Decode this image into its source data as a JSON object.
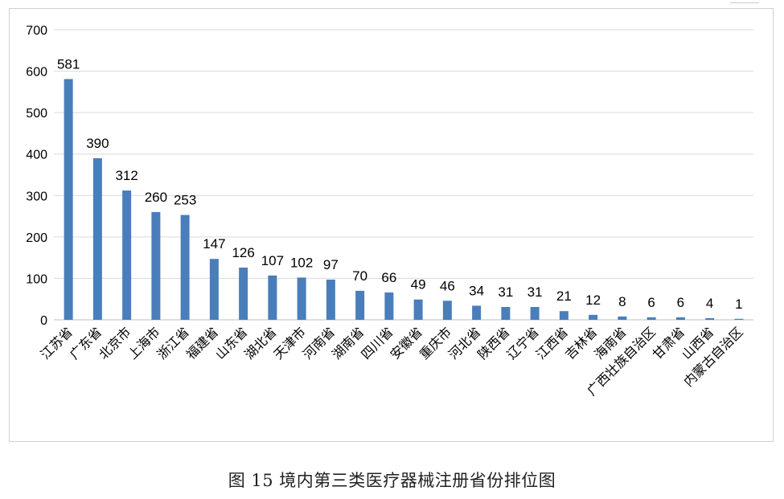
{
  "caption": "图 15 境内第三类医疗器械注册省份排位图",
  "colors": {
    "bar": "#4a7ebb",
    "grid": "#d9d9d9",
    "axis": "#bfbfbf",
    "text": "#000000"
  },
  "chart_data": {
    "type": "bar",
    "categories": [
      "江苏省",
      "广东省",
      "北京市",
      "上海市",
      "浙江省",
      "福建省",
      "山东省",
      "湖北省",
      "天津市",
      "河南省",
      "湖南省",
      "四川省",
      "安徽省",
      "重庆市",
      "河北省",
      "陕西省",
      "辽宁省",
      "江西省",
      "吉林省",
      "海南省",
      "广西壮族自治区",
      "甘肃省",
      "山西省",
      "内蒙古自治区"
    ],
    "values": [
      581,
      390,
      312,
      260,
      253,
      147,
      126,
      107,
      102,
      97,
      70,
      66,
      49,
      46,
      34,
      31,
      31,
      21,
      12,
      8,
      6,
      6,
      4,
      1
    ],
    "ylim": [
      0,
      700
    ],
    "yticks": [
      0,
      100,
      200,
      300,
      400,
      500,
      600,
      700
    ],
    "grid": true,
    "legend": false,
    "title": "",
    "xlabel": "",
    "ylabel": ""
  }
}
